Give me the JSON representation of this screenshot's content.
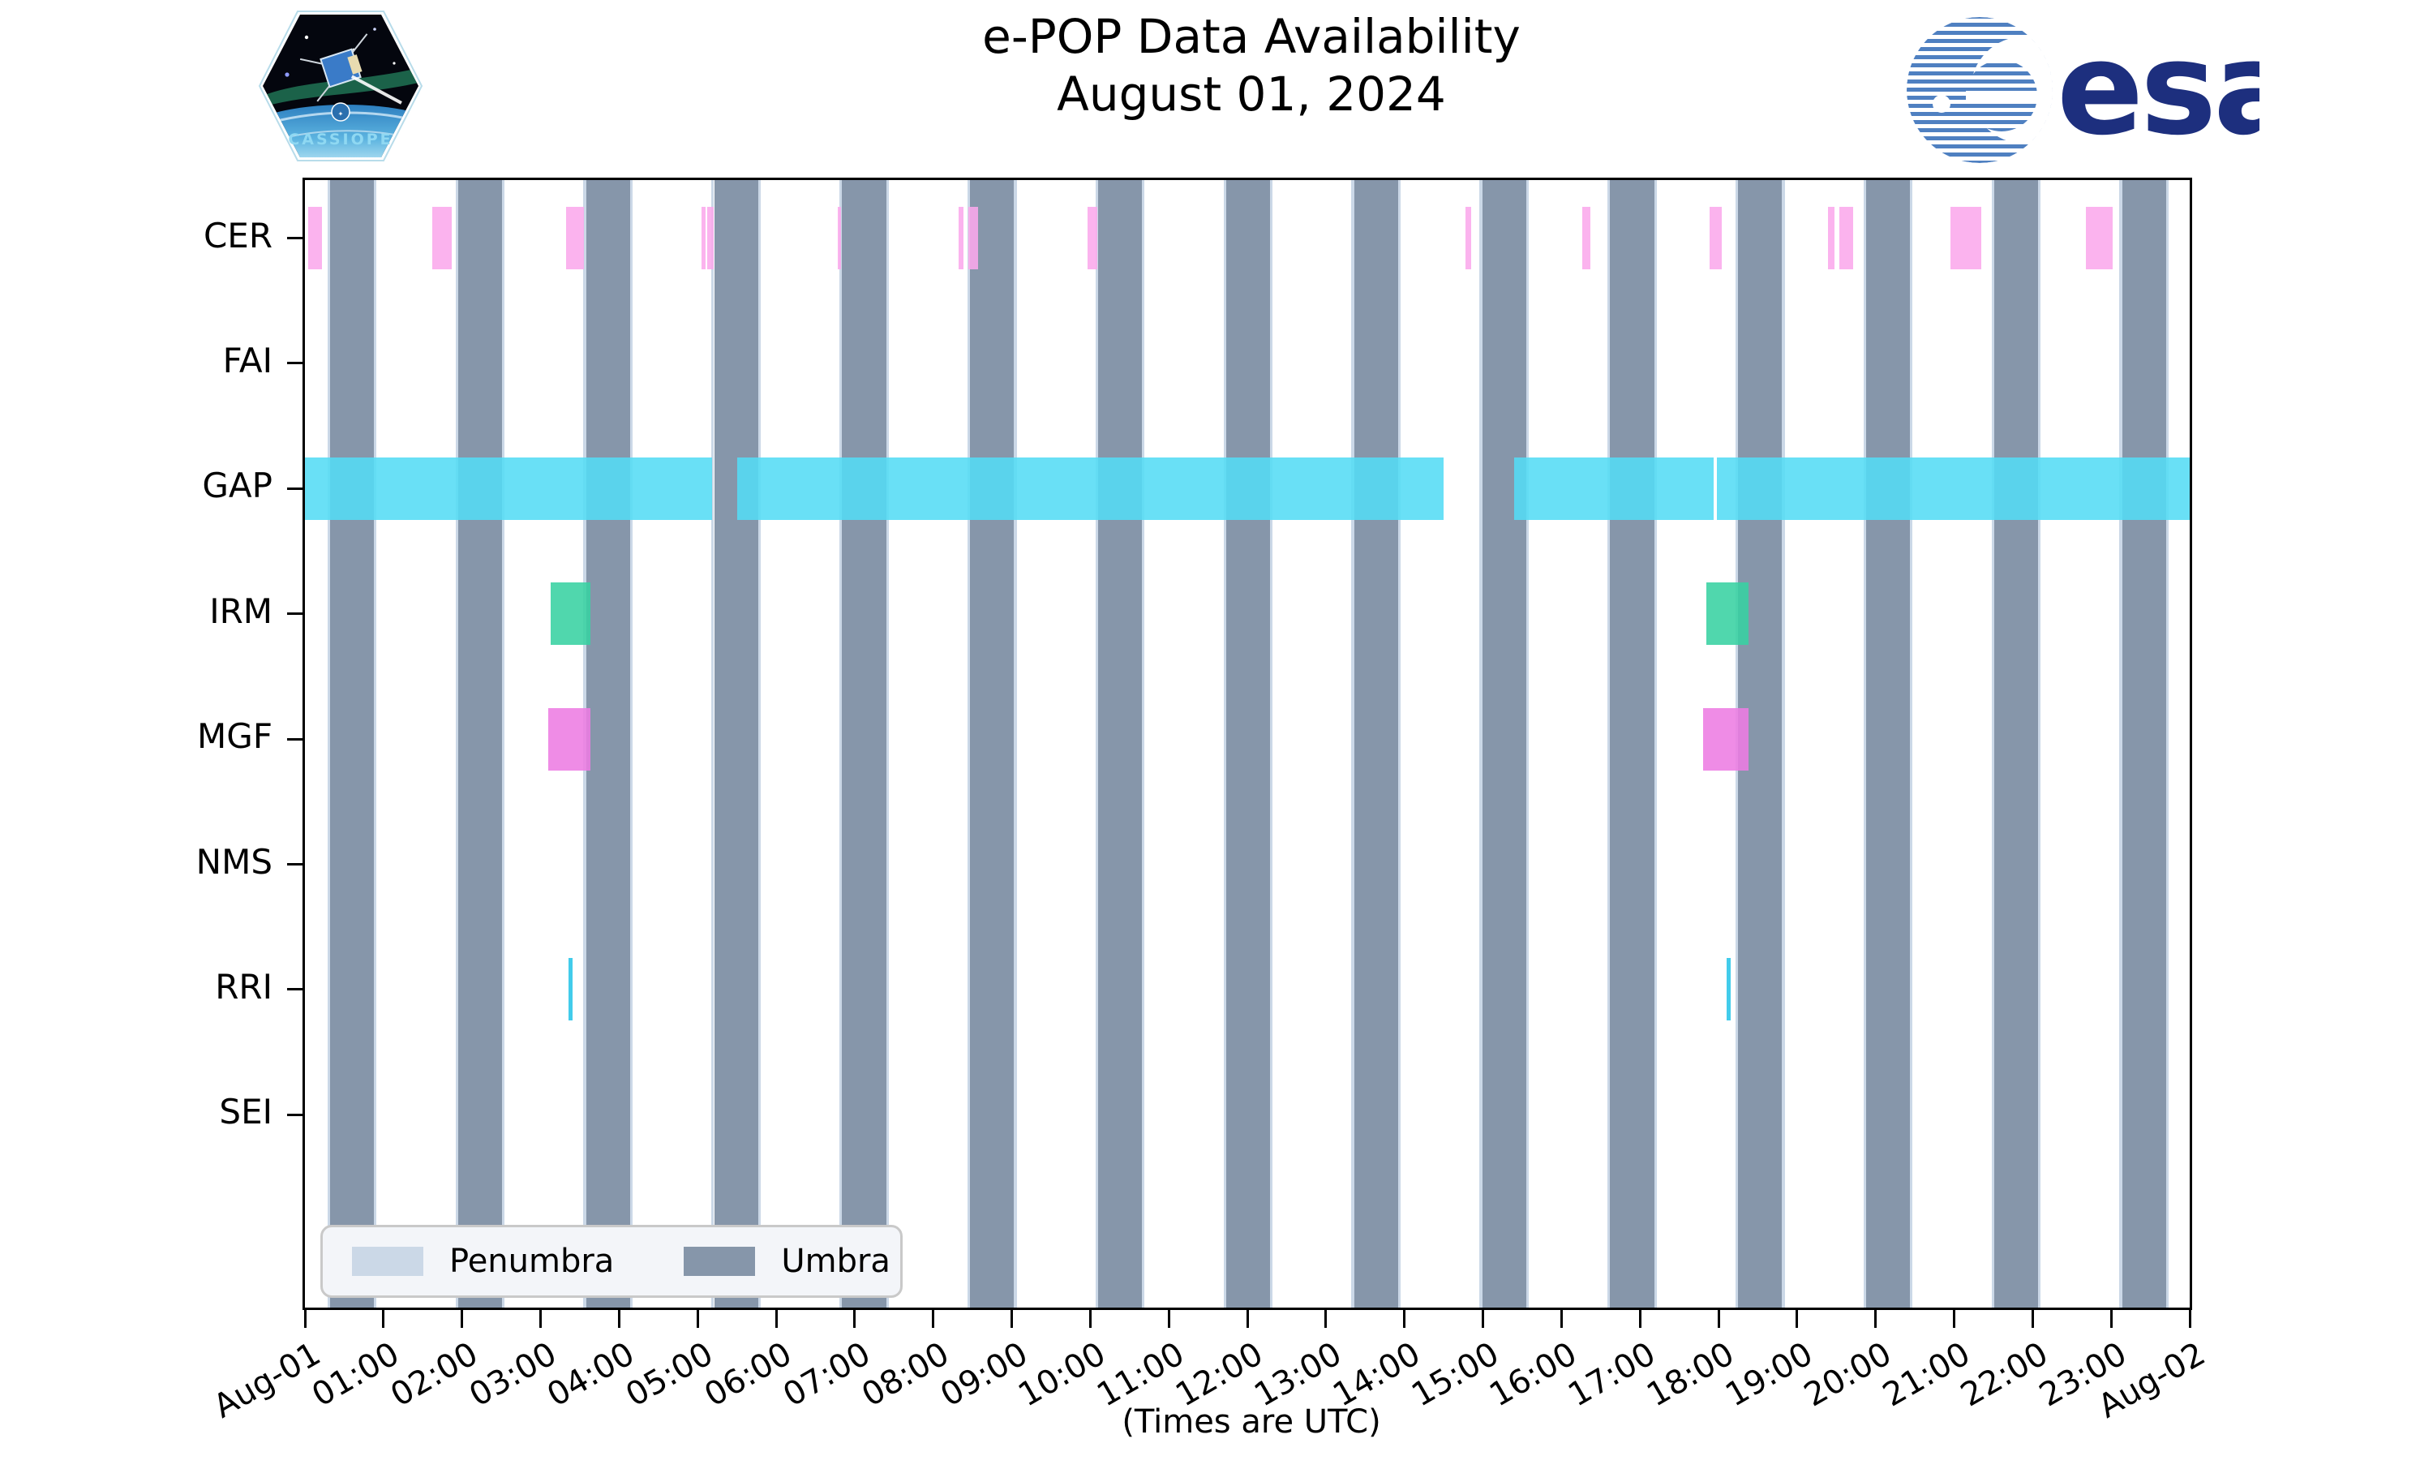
{
  "header": {
    "title_line1": "e-POP Data Availability",
    "title_line2": "August 01, 2024"
  },
  "logos": {
    "cassiope_text": "CASSIOPE",
    "esa_text": "esa"
  },
  "axis": {
    "note": "(Times are UTC)",
    "y_labels": [
      "CER",
      "FAI",
      "GAP",
      "IRM",
      "MGF",
      "NMS",
      "RRI",
      "SEI"
    ],
    "x_ticks": [
      "Aug-01",
      "01:00",
      "02:00",
      "03:00",
      "04:00",
      "05:00",
      "06:00",
      "07:00",
      "08:00",
      "09:00",
      "10:00",
      "11:00",
      "12:00",
      "13:00",
      "14:00",
      "15:00",
      "16:00",
      "17:00",
      "18:00",
      "19:00",
      "20:00",
      "21:00",
      "22:00",
      "23:00",
      "Aug-02"
    ]
  },
  "legend": {
    "penumbra_label": "Penumbra",
    "umbra_label": "Umbra"
  },
  "colors": {
    "umbra": "#8696AA",
    "penumbra": "#CBD8E7",
    "legend_bg": "#F3F5F9",
    "legend_border": "#C9C9C9",
    "cer": "#FBA9EC",
    "gap": "#54DCF5",
    "irm": "#38D2A2",
    "mgf": "#ED7CE2",
    "rri": "#28C5E8",
    "esa_wordmark": "#1D2F7E",
    "esa_globe": "#4F80C1",
    "cassiope_text_color": "#8FD8F2"
  },
  "chart_data": {
    "type": "timeline",
    "title": "e-POP Data Availability",
    "subtitle": "August 01, 2024",
    "xlabel": "(Times are UTC)",
    "x_axis": {
      "start_hour": 0,
      "end_hour": 24,
      "tick_interval_hours": 1,
      "start_label": "Aug-01",
      "end_label": "Aug-02"
    },
    "rows": [
      "CER",
      "FAI",
      "GAP",
      "IRM",
      "MGF",
      "NMS",
      "RRI",
      "SEI"
    ],
    "legend_position": "lower left",
    "umbra_intervals_hours": [
      [
        0.32,
        0.88
      ],
      [
        1.95,
        2.51
      ],
      [
        3.58,
        4.14
      ],
      [
        5.21,
        5.77
      ],
      [
        6.84,
        7.4
      ],
      [
        8.47,
        9.03
      ],
      [
        10.1,
        10.66
      ],
      [
        11.73,
        12.29
      ],
      [
        13.36,
        13.92
      ],
      [
        14.99,
        15.55
      ],
      [
        16.62,
        17.18
      ],
      [
        18.25,
        18.81
      ],
      [
        19.88,
        20.44
      ],
      [
        21.51,
        22.07
      ],
      [
        23.14,
        23.7
      ]
    ],
    "penumbra_edge_minutes": 2,
    "series": [
      {
        "name": "CER",
        "color_key": "cer",
        "intervals": [
          [
            0.04,
            0.22
          ],
          [
            1.62,
            1.87
          ],
          [
            3.33,
            3.55
          ],
          [
            5.05,
            5.1
          ],
          [
            5.12,
            5.2
          ],
          [
            6.79,
            6.82
          ],
          [
            8.32,
            8.39
          ],
          [
            8.45,
            8.57
          ],
          [
            9.97,
            10.09
          ],
          [
            14.78,
            14.85
          ],
          [
            16.26,
            16.37
          ],
          [
            17.89,
            18.04
          ],
          [
            19.39,
            19.48
          ],
          [
            19.54,
            19.71
          ],
          [
            20.95,
            21.35
          ],
          [
            22.68,
            23.02
          ]
        ]
      },
      {
        "name": "FAI",
        "color_key": "cer",
        "intervals": []
      },
      {
        "name": "GAP",
        "color_key": "gap",
        "intervals": [
          [
            0.0,
            5.18
          ],
          [
            5.5,
            14.5
          ],
          [
            15.4,
            17.94
          ],
          [
            17.98,
            24.0
          ]
        ]
      },
      {
        "name": "IRM",
        "color_key": "irm",
        "intervals": [
          [
            3.13,
            3.64
          ],
          [
            17.84,
            18.38
          ]
        ]
      },
      {
        "name": "MGF",
        "color_key": "mgf",
        "intervals": [
          [
            3.1,
            3.64
          ],
          [
            17.8,
            18.38
          ]
        ]
      },
      {
        "name": "NMS",
        "color_key": "rri",
        "intervals": []
      },
      {
        "name": "RRI",
        "color_key": "rri",
        "intervals": [
          [
            3.36,
            3.41
          ],
          [
            18.1,
            18.15
          ]
        ]
      },
      {
        "name": "SEI",
        "color_key": "rri",
        "intervals": []
      }
    ]
  }
}
